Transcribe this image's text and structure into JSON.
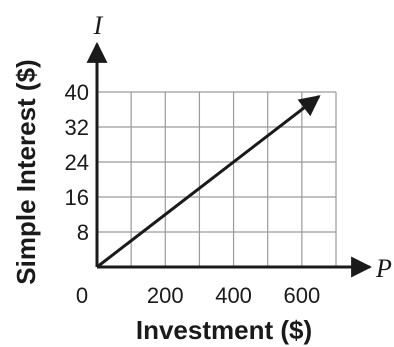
{
  "chart_data": {
    "type": "line",
    "xlabel": "Investment ($)",
    "ylabel": "Simple Interest ($)",
    "x_variable": "P",
    "y_variable": "I",
    "origin_label": "0",
    "xlim": [
      0,
      700
    ],
    "ylim": [
      0,
      40
    ],
    "x_ticks": [
      200,
      400,
      600
    ],
    "y_ticks": [
      8,
      16,
      24,
      32,
      40
    ],
    "grid": true,
    "series": [
      {
        "x": [
          0,
          650
        ],
        "y": [
          0,
          39
        ]
      }
    ]
  }
}
